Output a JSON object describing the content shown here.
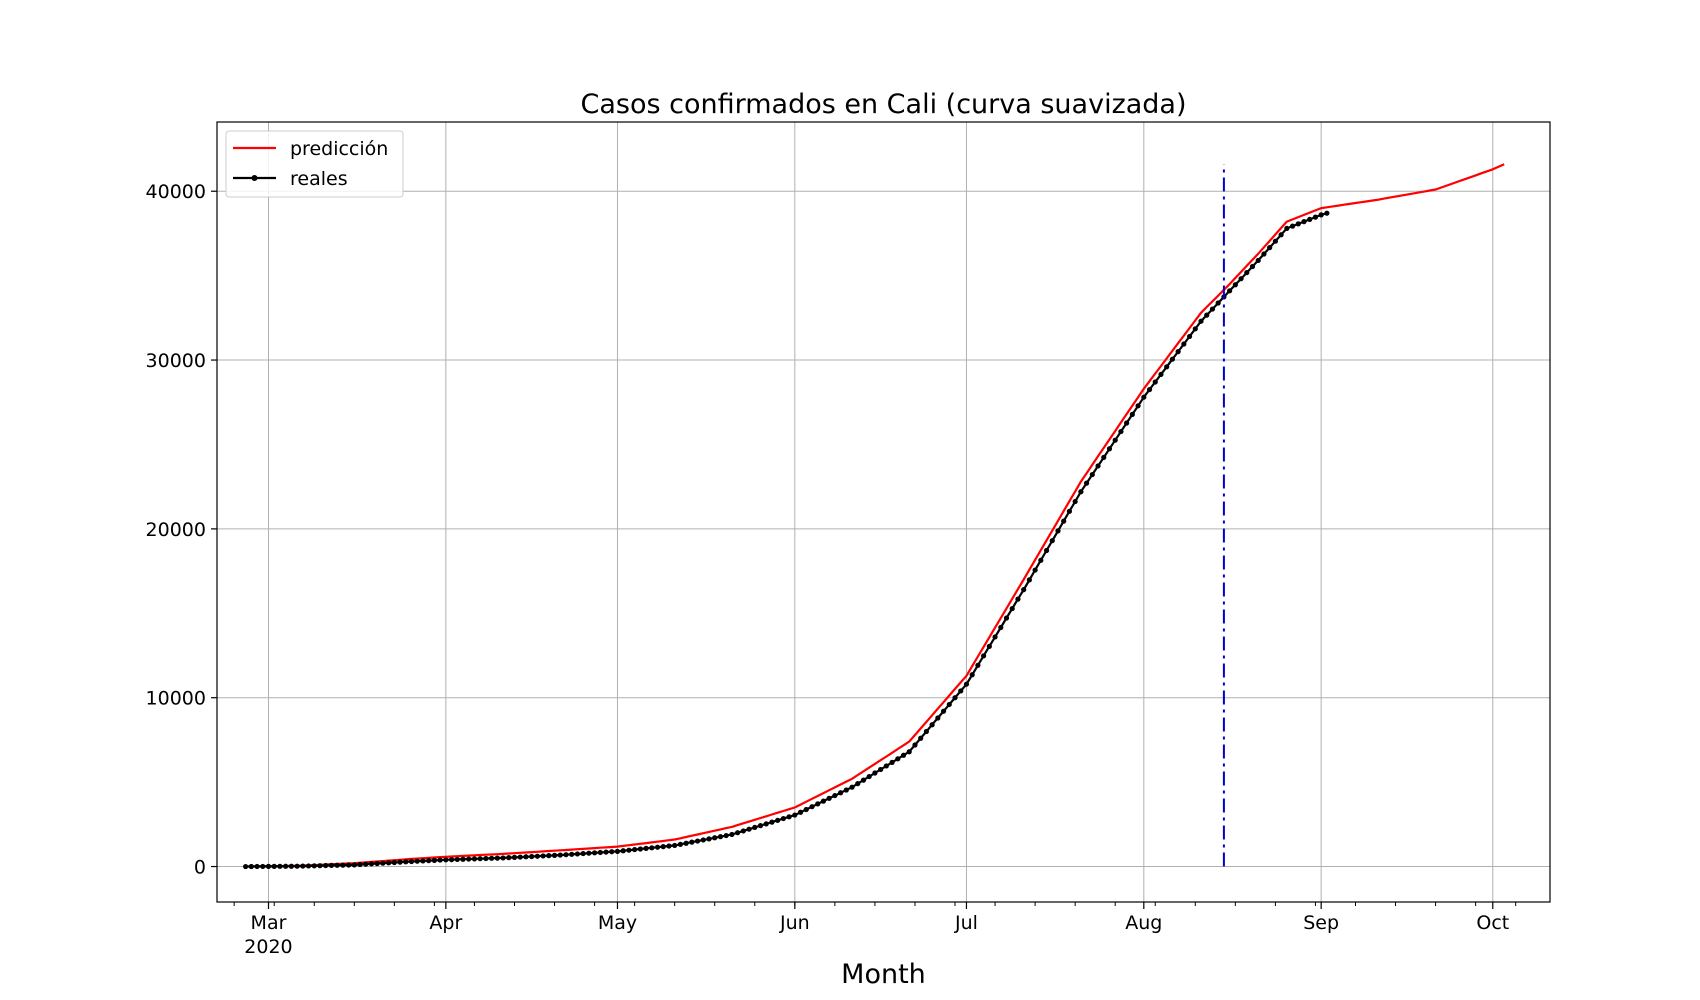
{
  "chart_data": {
    "type": "line",
    "title": "Casos confirmados en Cali (curva suavizada)",
    "xlabel": "Month",
    "ylabel": "",
    "x_axis_type": "date",
    "xlim": [
      "2020-02-21",
      "2020-10-11"
    ],
    "ylim": [
      -2100,
      44100
    ],
    "x_ticks": [
      {
        "date": "2020-03-01",
        "label": "Mar",
        "sublabel": "2020"
      },
      {
        "date": "2020-04-01",
        "label": "Apr",
        "sublabel": ""
      },
      {
        "date": "2020-05-01",
        "label": "May",
        "sublabel": ""
      },
      {
        "date": "2020-06-01",
        "label": "Jun",
        "sublabel": ""
      },
      {
        "date": "2020-07-01",
        "label": "Jul",
        "sublabel": ""
      },
      {
        "date": "2020-08-01",
        "label": "Aug",
        "sublabel": ""
      },
      {
        "date": "2020-09-01",
        "label": "Sep",
        "sublabel": ""
      },
      {
        "date": "2020-10-01",
        "label": "Oct",
        "sublabel": ""
      }
    ],
    "y_ticks": [
      {
        "value": 0,
        "label": "0"
      },
      {
        "value": 10000,
        "label": "10000"
      },
      {
        "value": 20000,
        "label": "20000"
      },
      {
        "value": 30000,
        "label": "30000"
      },
      {
        "value": 40000,
        "label": "40000"
      }
    ],
    "grid": true,
    "legend_position": "top-left",
    "series": [
      {
        "name": "predicción",
        "color": "#ff0000",
        "style": "line",
        "points": [
          [
            "2020-02-26",
            0
          ],
          [
            "2020-03-06",
            40
          ],
          [
            "2020-03-16",
            200
          ],
          [
            "2020-03-26",
            450
          ],
          [
            "2020-04-01",
            580
          ],
          [
            "2020-04-11",
            750
          ],
          [
            "2020-04-21",
            960
          ],
          [
            "2020-05-01",
            1180
          ],
          [
            "2020-05-11",
            1600
          ],
          [
            "2020-05-21",
            2350
          ],
          [
            "2020-06-01",
            3500
          ],
          [
            "2020-06-11",
            5200
          ],
          [
            "2020-06-21",
            7400
          ],
          [
            "2020-07-01",
            11300
          ],
          [
            "2020-07-11",
            17000
          ],
          [
            "2020-07-21",
            22800
          ],
          [
            "2020-08-01",
            28300
          ],
          [
            "2020-08-11",
            32800
          ],
          [
            "2020-08-16",
            34500
          ],
          [
            "2020-08-21",
            36300
          ],
          [
            "2020-08-26",
            38200
          ],
          [
            "2020-09-01",
            39000
          ],
          [
            "2020-09-11",
            39500
          ],
          [
            "2020-09-21",
            40100
          ],
          [
            "2020-10-01",
            41300
          ],
          [
            "2020-10-03",
            41600
          ]
        ]
      },
      {
        "name": "reales",
        "color": "#000000",
        "style": "line-markers",
        "points": [
          [
            "2020-02-26",
            0
          ],
          [
            "2020-03-06",
            20
          ],
          [
            "2020-03-16",
            100
          ],
          [
            "2020-03-26",
            300
          ],
          [
            "2020-04-01",
            400
          ],
          [
            "2020-04-11",
            510
          ],
          [
            "2020-04-21",
            680
          ],
          [
            "2020-05-01",
            900
          ],
          [
            "2020-05-11",
            1250
          ],
          [
            "2020-05-21",
            1900
          ],
          [
            "2020-06-01",
            3050
          ],
          [
            "2020-06-11",
            4700
          ],
          [
            "2020-06-21",
            6800
          ],
          [
            "2020-07-01",
            10800
          ],
          [
            "2020-07-11",
            16400
          ],
          [
            "2020-07-21",
            22200
          ],
          [
            "2020-08-01",
            27800
          ],
          [
            "2020-08-11",
            32300
          ],
          [
            "2020-08-16",
            34100
          ],
          [
            "2020-08-21",
            35900
          ],
          [
            "2020-08-26",
            37800
          ],
          [
            "2020-09-01",
            38600
          ],
          [
            "2020-09-02",
            38700
          ]
        ]
      }
    ],
    "annotations": [
      {
        "type": "vline",
        "date": "2020-08-15",
        "y_from": 0,
        "y_to": 41600,
        "color": "#0000cc",
        "style": "dash-dot"
      }
    ]
  }
}
